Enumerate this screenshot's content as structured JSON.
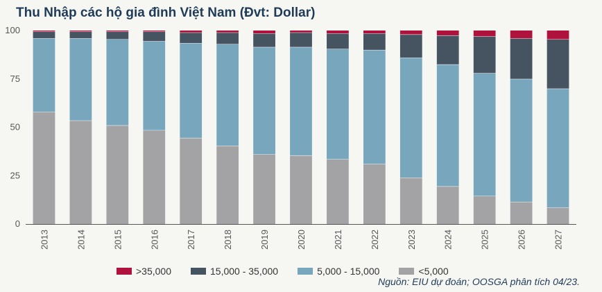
{
  "chart_data": {
    "type": "bar",
    "stacked": true,
    "title": "Thu Nhập các hộ gia đình Việt Nam (Đvt: Dollar)",
    "source": "Nguồn: EIU dự đoán; OOSGA phân tích 04/23.",
    "categories": [
      "2013",
      "2014",
      "2015",
      "2016",
      "2017",
      "2018",
      "2019",
      "2020",
      "2021",
      "2022",
      "2023",
      "2024",
      "2025",
      "2026",
      "2027"
    ],
    "ylim": [
      0,
      100
    ],
    "yticks": [
      0,
      25,
      50,
      75,
      100
    ],
    "legend_position": "bottom",
    "series": [
      {
        "name": "<5,000",
        "color": "#a3a3a5",
        "values": [
          58,
          53.5,
          51,
          48.5,
          44.5,
          40.5,
          36,
          35.5,
          33.5,
          31,
          24,
          19.5,
          14.5,
          11.5,
          8.5
        ]
      },
      {
        "name": "5,000 - 15,000",
        "color": "#78a6bd",
        "values": [
          38,
          42.5,
          44.5,
          46,
          49,
          52.5,
          55.5,
          56,
          57,
          59,
          62,
          63,
          63.5,
          63.5,
          61.5
        ]
      },
      {
        "name": "15,000 - 35,000",
        "color": "#465461",
        "values": [
          3.5,
          3.5,
          4,
          5,
          5.5,
          6,
          7,
          7.5,
          8,
          8.5,
          12,
          15,
          19,
          21,
          25.5
        ]
      },
      {
        "name": ">35,000",
        "color": "#b0123e",
        "values": [
          0.5,
          0.5,
          0.5,
          0.5,
          1,
          1,
          1.5,
          1,
          1.5,
          1.5,
          2,
          2.5,
          3,
          4,
          4.5
        ]
      }
    ],
    "legend_order": [
      3,
      2,
      1,
      0
    ]
  }
}
